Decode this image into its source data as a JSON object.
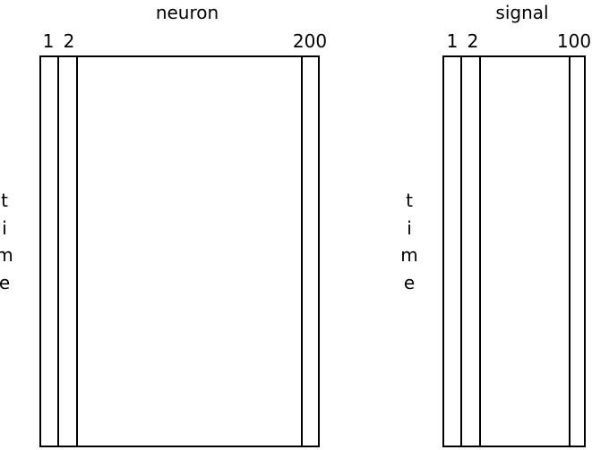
{
  "neuron_panel": {
    "title": "neuron",
    "column_labels": [
      "1",
      "2",
      "200"
    ],
    "row_axis_letters": [
      "t",
      "i",
      "m",
      "e"
    ]
  },
  "signal_panel": {
    "title": "signal",
    "column_labels": [
      "1",
      "2",
      "100"
    ],
    "row_axis_letters": [
      "t",
      "i",
      "m",
      "e"
    ]
  },
  "colors": {
    "stroke": "#000000",
    "background": "#ffffff"
  }
}
